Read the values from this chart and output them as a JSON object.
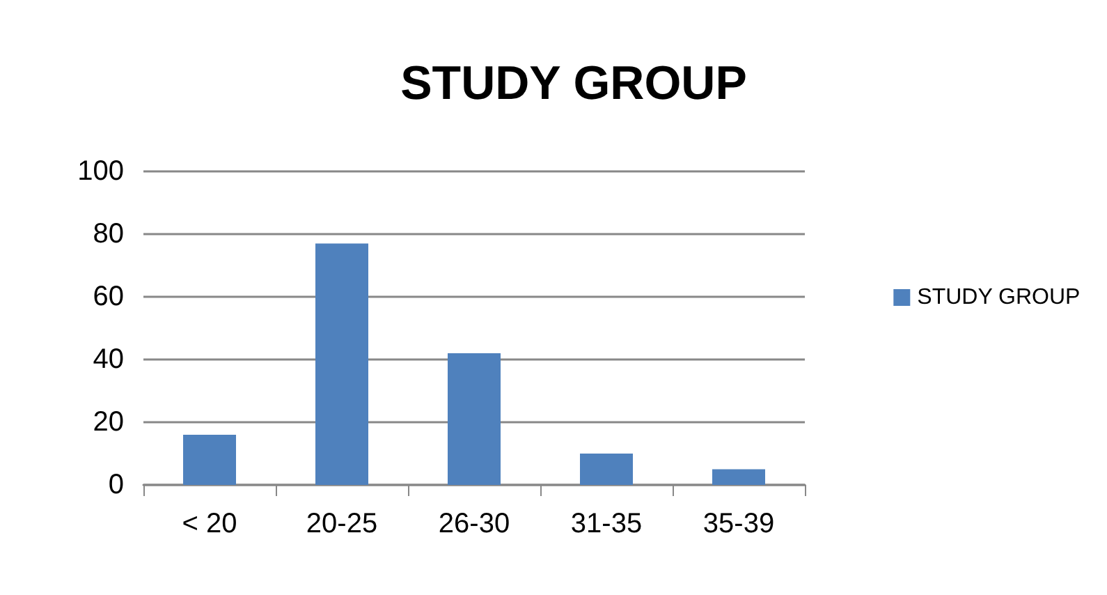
{
  "chart_data": {
    "type": "bar",
    "title": "STUDY GROUP",
    "categories": [
      "< 20",
      "20-25",
      "26-30",
      "31-35",
      "35-39"
    ],
    "series": [
      {
        "name": "STUDY GROUP",
        "color": "#4f81bd",
        "values": [
          16,
          77,
          42,
          10,
          5
        ]
      }
    ],
    "ylim": [
      0,
      100
    ],
    "yticks": [
      0,
      20,
      40,
      60,
      80,
      100
    ],
    "grid": "y",
    "legend": "right"
  }
}
